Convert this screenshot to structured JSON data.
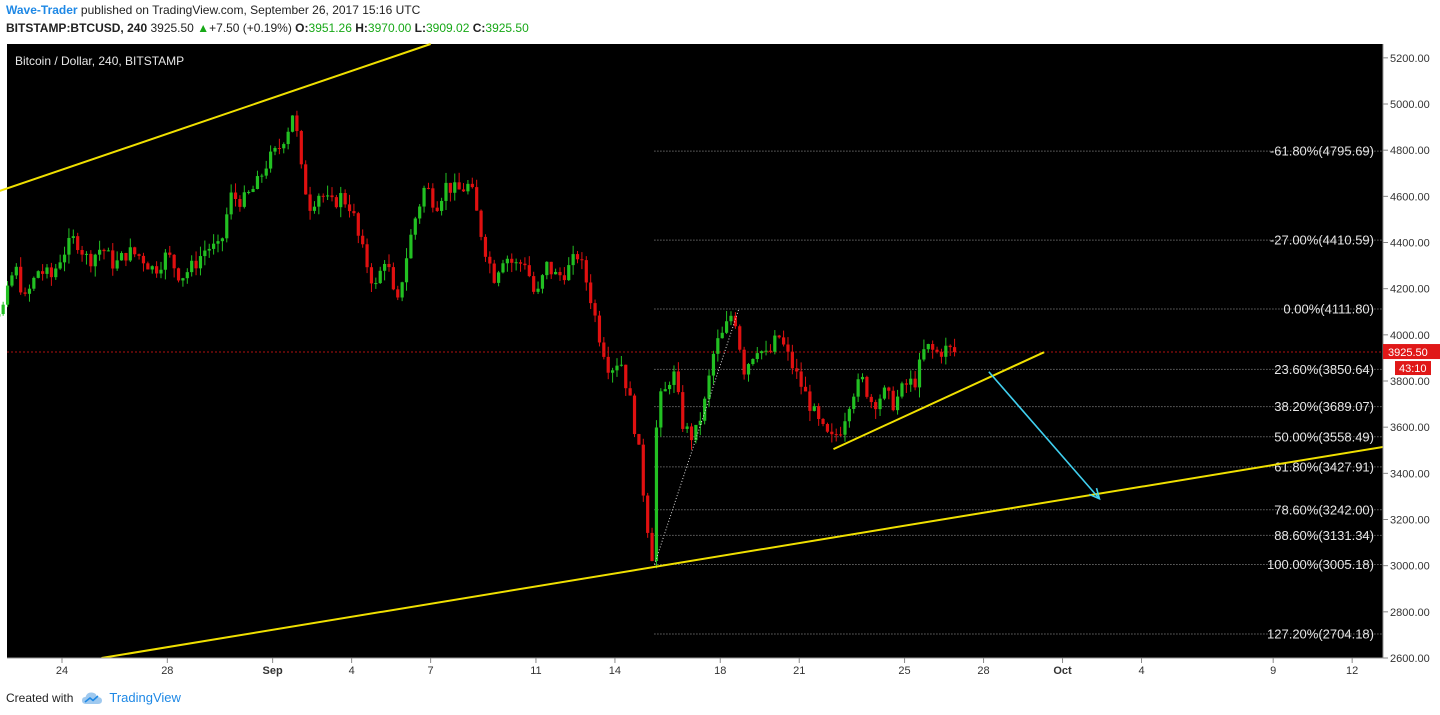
{
  "header": {
    "author": "Wave-Trader",
    "published_text": " published on TradingView.com, September 26, 2017 15:16 UTC",
    "symbol": "BITSTAMP:BTCUSD, 240",
    "last": "3925.50",
    "change": "+7.50 (+0.19%)",
    "o_label": "O:",
    "o": "3951.26",
    "h_label": "H:",
    "h": "3970.00",
    "l_label": "L:",
    "l": "3909.02",
    "c_label": "C:",
    "c": "3925.50",
    "up_color": "#17a817"
  },
  "footer": {
    "created_with": "Created with",
    "brand": "TradingView"
  },
  "chart_data": {
    "type": "candlestick",
    "title": "Bitcoin / Dollar, 240, BITSTAMP",
    "background": "#000000",
    "up_color": "#22c022",
    "down_color": "#e01010",
    "ylim": [
      2600,
      5260
    ],
    "y_ticks": [
      "5200.00",
      "5000.00",
      "4800.00",
      "4600.00",
      "4400.00",
      "4200.00",
      "4000.00",
      "3800.00",
      "3600.00",
      "3400.00",
      "3200.00",
      "3000.00",
      "2800.00",
      "2600.00"
    ],
    "x_ticks": [
      {
        "label": "24",
        "day": 24
      },
      {
        "label": "28",
        "day": 28
      },
      {
        "label": "Sep",
        "day": 32
      },
      {
        "label": "4",
        "day": 35
      },
      {
        "label": "7",
        "day": 38
      },
      {
        "label": "11",
        "day": 42
      },
      {
        "label": "14",
        "day": 45
      },
      {
        "label": "18",
        "day": 49
      },
      {
        "label": "21",
        "day": 52
      },
      {
        "label": "25",
        "day": 56
      },
      {
        "label": "28",
        "day": 59
      },
      {
        "label": "Oct",
        "day": 62
      },
      {
        "label": "4",
        "day": 65
      },
      {
        "label": "9",
        "day": 70
      },
      {
        "label": "12",
        "day": 73
      }
    ],
    "price_path": [
      [
        20.1,
        3900
      ],
      [
        20.4,
        3650
      ],
      [
        20.8,
        3920
      ],
      [
        21.3,
        4100
      ],
      [
        21.8,
        4120
      ],
      [
        22.2,
        4300
      ],
      [
        22.6,
        4150
      ],
      [
        23.1,
        4280
      ],
      [
        23.6,
        4250
      ],
      [
        24.0,
        4350
      ],
      [
        24.5,
        4420
      ],
      [
        25.0,
        4320
      ],
      [
        25.5,
        4380
      ],
      [
        26.0,
        4300
      ],
      [
        26.5,
        4360
      ],
      [
        27.0,
        4340
      ],
      [
        27.5,
        4280
      ],
      [
        28.0,
        4350
      ],
      [
        28.5,
        4250
      ],
      [
        29.0,
        4300
      ],
      [
        29.5,
        4380
      ],
      [
        30.0,
        4370
      ],
      [
        30.4,
        4600
      ],
      [
        30.9,
        4580
      ],
      [
        31.4,
        4650
      ],
      [
        31.8,
        4750
      ],
      [
        32.2,
        4800
      ],
      [
        32.6,
        4900
      ],
      [
        32.8,
        4980
      ],
      [
        33.1,
        4700
      ],
      [
        33.4,
        4560
      ],
      [
        33.8,
        4620
      ],
      [
        34.2,
        4560
      ],
      [
        34.6,
        4600
      ],
      [
        35.0,
        4550
      ],
      [
        35.3,
        4400
      ],
      [
        35.6,
        4300
      ],
      [
        35.9,
        4200
      ],
      [
        36.3,
        4350
      ],
      [
        36.7,
        4100
      ],
      [
        37.0,
        4300
      ],
      [
        37.4,
        4500
      ],
      [
        37.8,
        4650
      ],
      [
        38.2,
        4560
      ],
      [
        38.6,
        4650
      ],
      [
        39.0,
        4620
      ],
      [
        39.5,
        4650
      ],
      [
        40.0,
        4400
      ],
      [
        40.4,
        4250
      ],
      [
        40.8,
        4350
      ],
      [
        41.2,
        4300
      ],
      [
        41.6,
        4320
      ],
      [
        42.0,
        4150
      ],
      [
        42.4,
        4300
      ],
      [
        42.8,
        4250
      ],
      [
        43.2,
        4280
      ],
      [
        43.6,
        4350
      ],
      [
        44.0,
        4200
      ],
      [
        44.4,
        4000
      ],
      [
        44.8,
        3850
      ],
      [
        45.2,
        3900
      ],
      [
        45.6,
        3700
      ],
      [
        45.9,
        3500
      ],
      [
        46.2,
        3200
      ],
      [
        46.45,
        3020
      ],
      [
        46.6,
        3700
      ],
      [
        46.9,
        3750
      ],
      [
        47.2,
        3850
      ],
      [
        47.6,
        3600
      ],
      [
        48.0,
        3550
      ],
      [
        48.4,
        3700
      ],
      [
        48.8,
        3950
      ],
      [
        49.1,
        4000
      ],
      [
        49.5,
        4110
      ],
      [
        49.9,
        3850
      ],
      [
        50.4,
        3950
      ],
      [
        50.8,
        3900
      ],
      [
        51.2,
        4000
      ],
      [
        51.6,
        3900
      ],
      [
        52.0,
        3800
      ],
      [
        52.4,
        3700
      ],
      [
        52.8,
        3600
      ],
      [
        53.2,
        3540
      ],
      [
        53.6,
        3600
      ],
      [
        54.0,
        3750
      ],
      [
        54.4,
        3800
      ],
      [
        54.8,
        3700
      ],
      [
        55.2,
        3750
      ],
      [
        55.6,
        3700
      ],
      [
        56.0,
        3780
      ],
      [
        56.4,
        3800
      ],
      [
        56.8,
        3950
      ],
      [
        57.2,
        3920
      ],
      [
        57.6,
        3940
      ],
      [
        57.9,
        3925.5
      ]
    ],
    "last_price": "3925.50",
    "countdown": "43:10",
    "fib_levels": [
      {
        "label": "-61.80%(4795.69)",
        "price": 4795.69
      },
      {
        "label": "-27.00%(4410.59)",
        "price": 4410.59
      },
      {
        "label": "0.00%(4111.80)",
        "price": 4111.8
      },
      {
        "label": "23.60%(3850.64)",
        "price": 3850.64
      },
      {
        "label": "38.20%(3689.07)",
        "price": 3689.07
      },
      {
        "label": "50.00%(3558.49)",
        "price": 3558.49
      },
      {
        "label": "61.80%(3427.91)",
        "price": 3427.91
      },
      {
        "label": "78.60%(3242.00)",
        "price": 3242.0
      },
      {
        "label": "88.60%(3131.34)",
        "price": 3131.34
      },
      {
        "label": "100.00%(3005.18)",
        "price": 3005.18
      },
      {
        "label": "127.20%(2704.18)",
        "price": 2704.18
      }
    ],
    "fib_start_day": 46.5,
    "fib_end_day": 74.6,
    "channel_upper": [
      [
        20.0,
        4560
      ],
      [
        38.0,
        5260
      ]
    ],
    "channel_lower": [
      [
        25.5,
        2600
      ],
      [
        75.0,
        3530
      ]
    ],
    "support_line": [
      [
        53.3,
        3505
      ],
      [
        61.3,
        3925
      ]
    ],
    "forecast_arrow": [
      [
        59.2,
        3840
      ],
      [
        63.4,
        3290
      ]
    ],
    "fib_anchor_line": [
      [
        46.5,
        3005
      ],
      [
        49.7,
        4110
      ]
    ],
    "line_color": "#f0e000",
    "arrow_color": "#40d0f0"
  }
}
